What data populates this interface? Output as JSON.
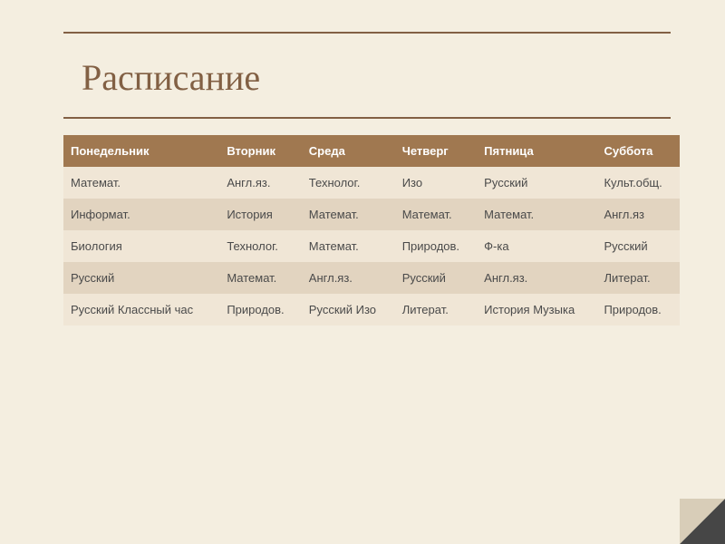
{
  "title": "Расписание",
  "colors": {
    "background": "#f4eee0",
    "title_color": "#826044",
    "divider_color": "#826044",
    "header_bg": "#a07850",
    "header_text": "#ffffff",
    "row_light": "#f0e6d6",
    "row_dark": "#e2d4c0",
    "cell_text": "#4a4a4a",
    "fold_dark": "#464646",
    "fold_light": "#d8cdb8"
  },
  "typography": {
    "title_fontsize": 40,
    "title_font": "Georgia",
    "cell_fontsize": 13,
    "cell_font": "Arial",
    "header_weight": "bold"
  },
  "table": {
    "type": "table",
    "columns": [
      "Понедельник",
      "Вторник",
      "Среда",
      "Четверг",
      "Пятница",
      "Суббота"
    ],
    "rows": [
      [
        "Математ.",
        "Англ.яз.",
        "Технолог.",
        "Изо",
        "Русский",
        "Культ.общ."
      ],
      [
        "Информат.",
        "История",
        "Математ.",
        "Математ.",
        "Математ.",
        "Англ.яз"
      ],
      [
        "Биология",
        "Технолог.",
        "Математ.",
        "Природов.",
        "Ф-ка",
        "Русский"
      ],
      [
        "Русский",
        "Математ.",
        "Англ.яз.",
        "Русский",
        "Англ.яз.",
        "Литерат."
      ],
      [
        "Русский Классный час",
        "Природов.",
        "Русский Изо",
        "Литерат.",
        "История Музыка",
        "Природов."
      ]
    ],
    "row_backgrounds": [
      "light",
      "dark",
      "light",
      "dark",
      "light"
    ]
  }
}
